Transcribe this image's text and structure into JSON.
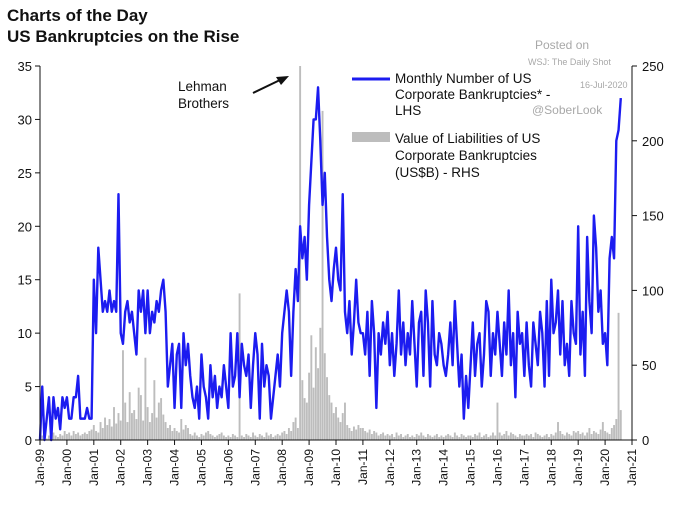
{
  "header": {
    "title": "Charts of the Day",
    "subtitle": "US Bankruptcies on the Rise"
  },
  "watermark": {
    "posted_on": "Posted on",
    "source": "WSJ: The Daily Shot",
    "date": "16-Jul-2020",
    "handle": "@SoberLook"
  },
  "chart_data": {
    "type": "line",
    "grid": false,
    "legend_position": "top-right",
    "annotation": {
      "text_lines": [
        "Lehman",
        "Brothers"
      ],
      "arrow": true,
      "points_to": "2008-09"
    },
    "x_range": [
      "1999-01",
      "2021-01"
    ],
    "xticks": [
      "Jan-99",
      "Jan-00",
      "Jan-01",
      "Jan-02",
      "Jan-03",
      "Jan-04",
      "Jan-05",
      "Jan-06",
      "Jan-07",
      "Jan-08",
      "Jan-09",
      "Jan-10",
      "Jan-11",
      "Jan-12",
      "Jan-13",
      "Jan-14",
      "Jan-15",
      "Jan-16",
      "Jan-17",
      "Jan-18",
      "Jan-19",
      "Jan-20",
      "Jan-21"
    ],
    "y_left": {
      "ticks": [
        0,
        5,
        10,
        15,
        20,
        25,
        30,
        35
      ],
      "ylim": [
        0,
        35
      ]
    },
    "y_right": {
      "ticks": [
        0,
        50,
        100,
        150,
        200,
        250
      ],
      "ylim": [
        0,
        250
      ]
    },
    "colors": {
      "line": "#1c1cf0",
      "bars": "#bdbdbd"
    },
    "series": [
      {
        "name_lines": [
          "Monthly Number of US",
          "Corporate Bankruptcies* -",
          "LHS"
        ],
        "type": "line",
        "axis": "left",
        "start": "1999-01",
        "frequency": "monthly",
        "values": [
          0,
          5,
          0,
          2,
          4,
          0,
          4,
          2,
          3,
          1,
          4,
          3,
          4,
          2,
          2,
          4,
          4,
          6,
          2,
          2,
          2,
          3,
          2,
          2,
          15,
          10,
          18,
          15,
          12,
          13,
          12,
          14,
          12,
          13,
          12,
          23,
          10,
          9,
          12,
          13,
          11,
          12,
          10,
          8,
          14,
          12,
          14,
          10,
          14,
          10,
          12,
          11,
          13,
          12,
          14,
          15,
          12,
          5,
          7,
          9,
          3,
          8,
          9,
          3,
          10,
          7,
          9,
          6,
          4,
          3,
          5,
          2,
          8,
          5,
          4,
          2,
          7,
          4,
          6,
          3,
          5,
          4,
          7,
          5,
          3,
          10,
          5,
          6,
          10,
          4,
          9,
          7,
          6,
          8,
          3,
          7,
          10,
          8,
          2,
          9,
          5,
          7,
          6,
          2,
          4,
          6,
          8,
          5,
          10,
          12,
          14,
          12,
          6,
          12,
          16,
          13,
          20,
          17,
          19,
          15,
          22,
          26,
          30,
          30,
          33,
          28,
          22,
          25,
          19,
          15,
          13,
          16,
          18,
          15,
          14,
          23,
          12,
          10,
          13,
          8,
          11,
          15,
          11,
          10,
          10,
          8,
          12,
          6,
          13,
          10,
          3,
          10,
          8,
          11,
          9,
          12,
          7,
          10,
          6,
          9,
          14,
          8,
          11,
          7,
          10,
          8,
          13,
          9,
          5,
          11,
          12,
          6,
          14,
          11,
          5,
          13,
          8,
          7,
          10,
          9,
          7,
          6,
          8,
          11,
          7,
          13,
          9,
          5,
          8,
          2,
          6,
          3,
          7,
          11,
          6,
          9,
          10,
          5,
          8,
          13,
          12,
          6,
          10,
          8,
          12,
          9,
          6,
          11,
          8,
          14,
          7,
          10,
          4,
          12,
          9,
          10,
          6,
          11,
          7,
          5,
          11,
          9,
          7,
          12,
          10,
          5,
          13,
          6,
          15,
          10,
          11,
          14,
          8,
          13,
          7,
          9,
          6,
          13,
          10,
          9,
          20,
          8,
          12,
          6,
          19,
          13,
          10,
          21,
          18,
          12,
          14,
          9,
          10,
          7,
          17,
          19,
          17,
          28,
          29,
          32
        ]
      },
      {
        "name_lines": [
          "Value of Liabilities of US",
          "Corporate Bankruptcies",
          "(US$B) - RHS"
        ],
        "type": "bar",
        "axis": "right",
        "start": "1999-01",
        "frequency": "monthly",
        "values": [
          2,
          3,
          4,
          1,
          3,
          2,
          5,
          3,
          2,
          4,
          3,
          6,
          4,
          5,
          3,
          6,
          4,
          5,
          3,
          4,
          5,
          4,
          6,
          7,
          10,
          6,
          5,
          12,
          8,
          15,
          10,
          14,
          9,
          22,
          11,
          18,
          13,
          60,
          25,
          12,
          32,
          18,
          20,
          14,
          35,
          30,
          13,
          55,
          22,
          12,
          18,
          40,
          15,
          25,
          28,
          17,
          12,
          8,
          10,
          6,
          8,
          6,
          5,
          14,
          7,
          10,
          8,
          4,
          3,
          5,
          3,
          2,
          4,
          3,
          5,
          6,
          4,
          3,
          2,
          3,
          4,
          5,
          3,
          2,
          3,
          2,
          4,
          3,
          2,
          98,
          3,
          2,
          4,
          3,
          2,
          5,
          3,
          2,
          4,
          3,
          2,
          5,
          3,
          4,
          2,
          3,
          4,
          3,
          5,
          6,
          4,
          8,
          6,
          12,
          15,
          8,
          250,
          40,
          28,
          25,
          45,
          70,
          35,
          62,
          48,
          75,
          220,
          58,
          42,
          30,
          25,
          18,
          22,
          15,
          12,
          18,
          25,
          10,
          8,
          6,
          9,
          7,
          10,
          8,
          8,
          6,
          5,
          7,
          4,
          6,
          5,
          3,
          4,
          5,
          3,
          4,
          3,
          4,
          2,
          5,
          3,
          4,
          2,
          3,
          4,
          2,
          3,
          2,
          4,
          3,
          5,
          3,
          2,
          4,
          3,
          2,
          3,
          4,
          2,
          3,
          2,
          3,
          4,
          3,
          2,
          5,
          3,
          2,
          4,
          3,
          2,
          3,
          3,
          2,
          4,
          3,
          5,
          2,
          3,
          4,
          2,
          3,
          5,
          3,
          25,
          5,
          3,
          4,
          6,
          3,
          5,
          4,
          3,
          2,
          4,
          3,
          3,
          4,
          3,
          4,
          2,
          5,
          4,
          3,
          2,
          3,
          4,
          2,
          4,
          3,
          5,
          12,
          6,
          4,
          3,
          5,
          4,
          3,
          6,
          5,
          6,
          4,
          5,
          3,
          5,
          8,
          4,
          6,
          5,
          4,
          7,
          12,
          6,
          5,
          4,
          8,
          10,
          14,
          85,
          20
        ]
      }
    ]
  }
}
